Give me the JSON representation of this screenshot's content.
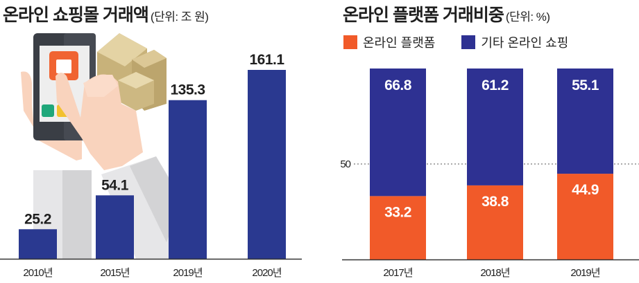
{
  "chart_data": [
    {
      "type": "bar",
      "title": "온라인 쇼핑몰 거래액",
      "unit_label": "(단위: 조 원)",
      "categories": [
        "2010년",
        "2015년",
        "2019년",
        "2020년"
      ],
      "values": [
        25.2,
        54.1,
        135.3,
        161.1
      ],
      "value_labels": [
        "25.2",
        "54.1",
        "135.3",
        "161.1"
      ],
      "xlabel": "",
      "ylabel": "",
      "ylim": [
        0,
        180
      ],
      "grid": false,
      "colors": {
        "bar": "#2a3990",
        "label": "#1f1f1f",
        "axis": "#333333"
      }
    },
    {
      "type": "bar",
      "stacked": true,
      "title": "온라인 플랫폼 거래비중",
      "unit_label": "(단위: %)",
      "categories": [
        "2017년",
        "2018년",
        "2019년"
      ],
      "series": [
        {
          "name": "온라인 플랫폼",
          "values": [
            33.2,
            38.8,
            44.9
          ],
          "value_labels": [
            "33.2",
            "38.8",
            "44.9"
          ],
          "color": "#f15a29"
        },
        {
          "name": "기타 온라인 쇼핑",
          "values": [
            66.8,
            61.2,
            55.1
          ],
          "value_labels": [
            "66.8",
            "61.2",
            "55.1"
          ],
          "color": "#2e3192"
        }
      ],
      "reference_line": {
        "value": 50,
        "label": "50",
        "style": "dotted"
      },
      "ylim": [
        0,
        100
      ],
      "legend": "top-left",
      "colors": {
        "label": "#ffffff",
        "axis": "#333333"
      }
    }
  ]
}
